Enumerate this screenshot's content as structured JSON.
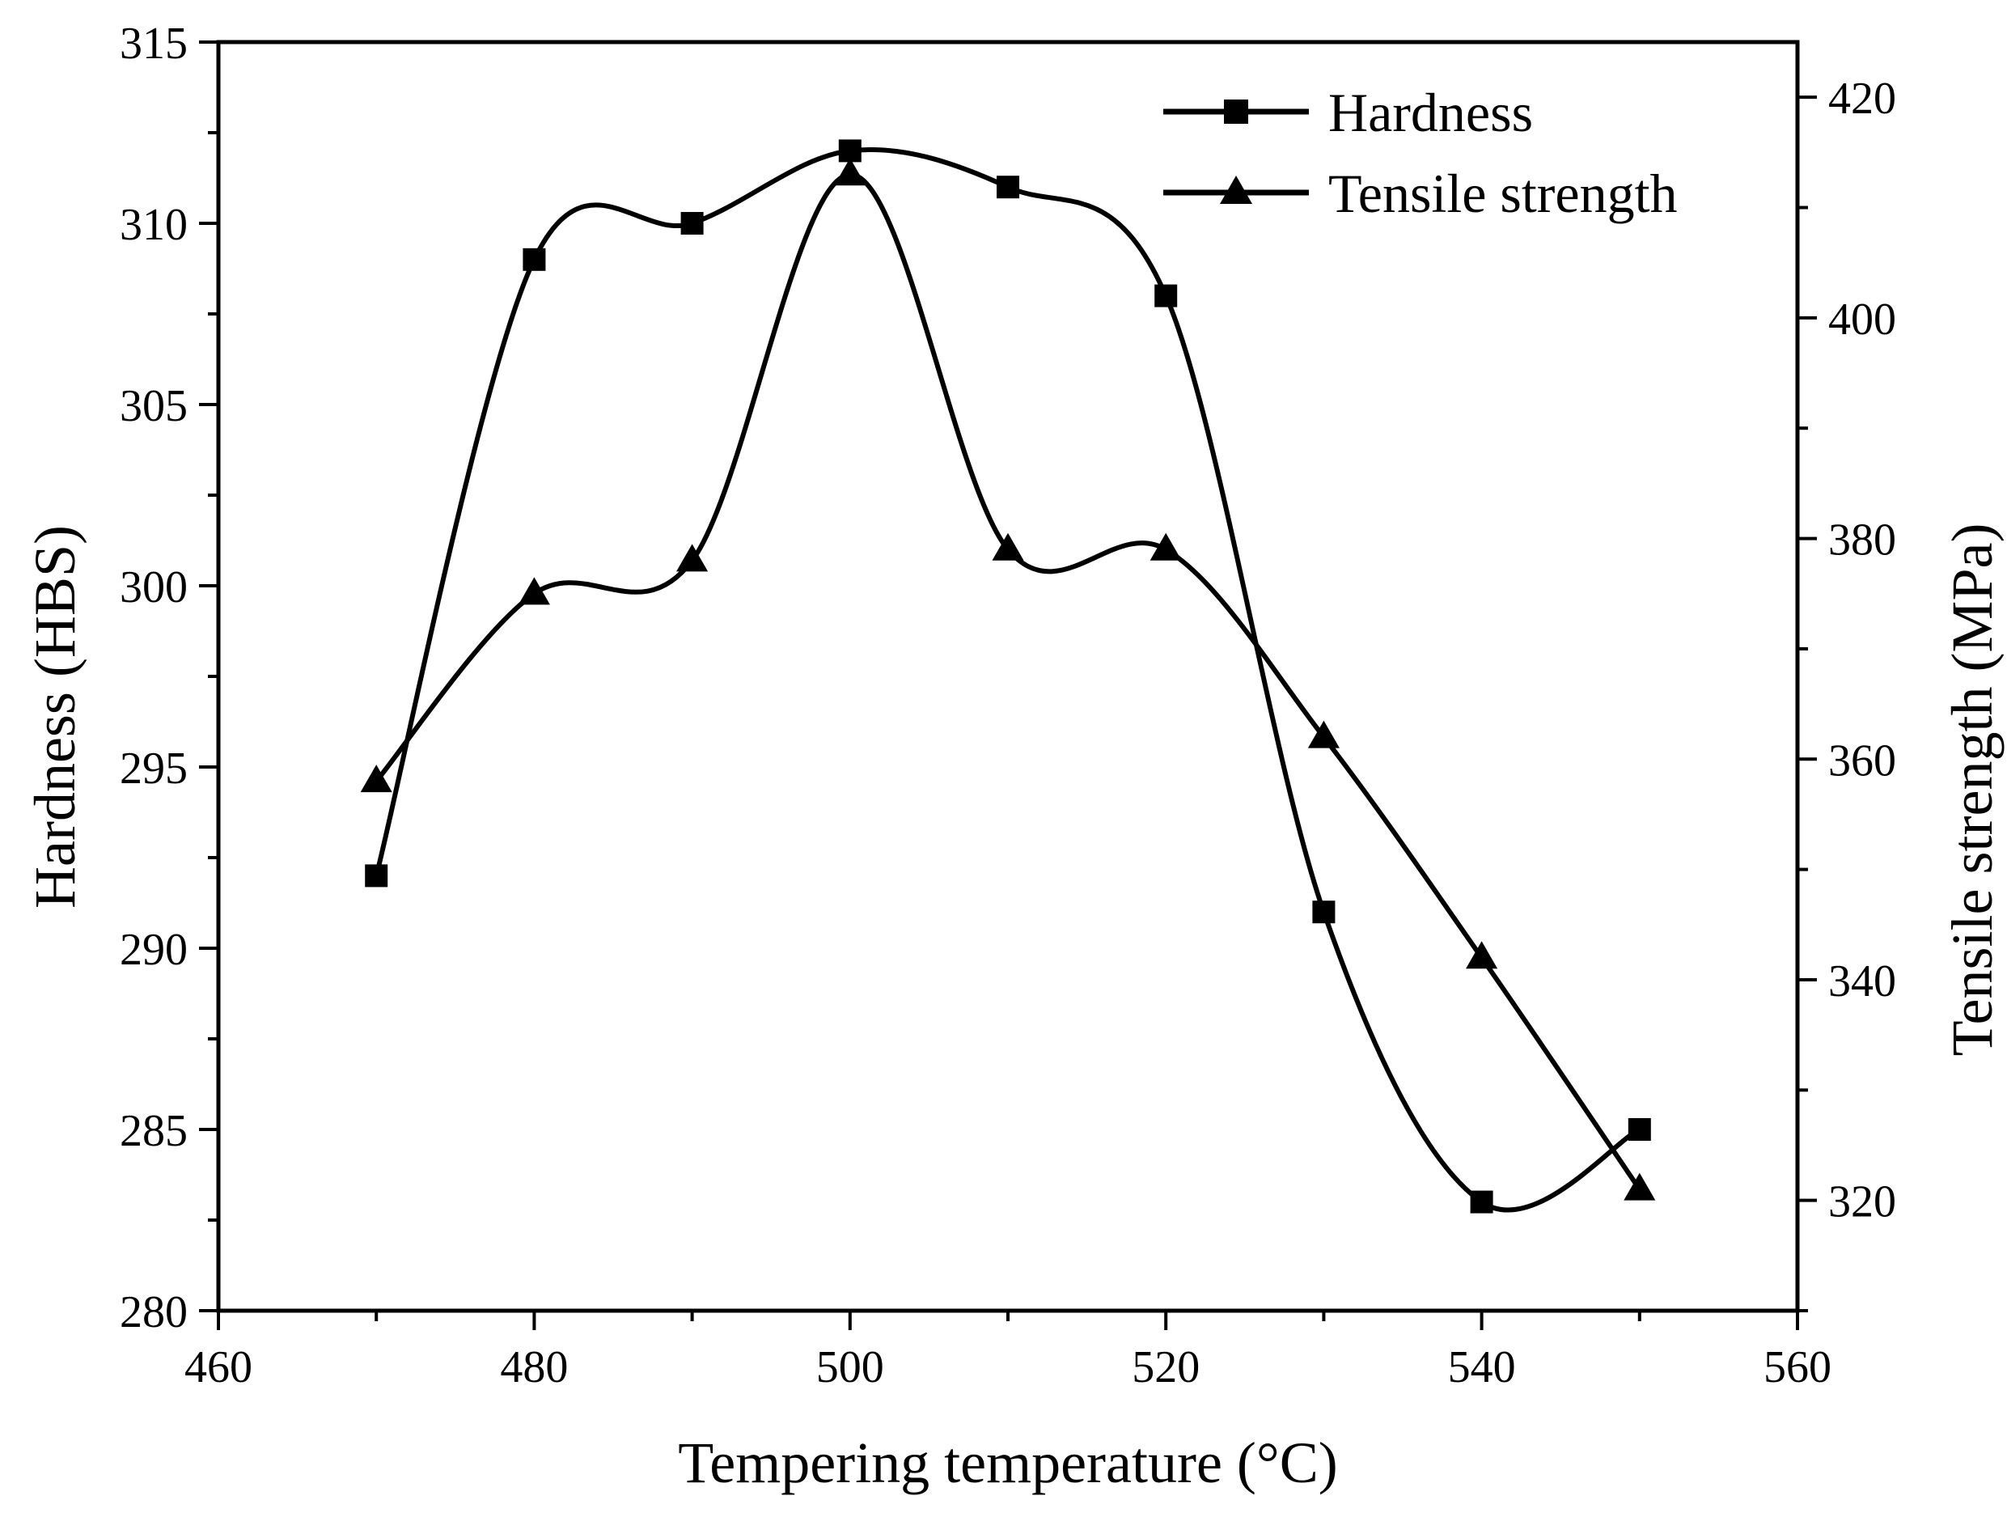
{
  "chart_data": {
    "type": "line",
    "title": "",
    "xlabel": "Tempering temperature (°C)",
    "ylabel_left": "Hardness (HBS)",
    "ylabel_right": "Tensile strength (MPa)",
    "xlim": [
      460,
      560
    ],
    "ylim_left": [
      280,
      315
    ],
    "ylim_right": [
      310,
      425
    ],
    "x_ticks": [
      "460",
      "480",
      "500",
      "520",
      "540",
      "560"
    ],
    "y_left_ticks": [
      "280",
      "285",
      "290",
      "295",
      "300",
      "305",
      "310",
      "315"
    ],
    "y_right_ticks": [
      "320",
      "340",
      "360",
      "380",
      "400",
      "420"
    ],
    "grid": false,
    "legend_position": "top-right",
    "series": [
      {
        "name": "Hardness",
        "axis": "left",
        "marker": "square",
        "x": [
          470,
          480,
          490,
          500,
          510,
          520,
          530,
          540,
          550
        ],
        "values": [
          292,
          309,
          310,
          312,
          311,
          308,
          291,
          283,
          285
        ]
      },
      {
        "name": "Tensile strength",
        "axis": "right",
        "marker": "triangle",
        "x": [
          470,
          480,
          490,
          500,
          510,
          520,
          530,
          540,
          550
        ],
        "values": [
          358,
          375,
          378,
          413,
          379,
          379,
          362,
          342,
          321
        ]
      }
    ],
    "colors": {
      "line": "#000000",
      "background": "#ffffff"
    }
  }
}
